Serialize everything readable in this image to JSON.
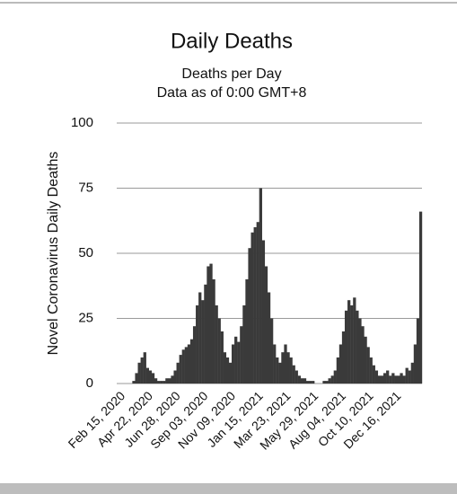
{
  "chart_data": {
    "type": "bar",
    "title": "Daily Deaths",
    "subtitle": "Deaths per Day",
    "note": "Data as of 0:00 GMT+8",
    "y_label": "Novel Coronavirus Daily Deaths",
    "color": "#3a3a3a",
    "grid": true,
    "ylim": [
      0,
      100
    ],
    "yticks": [
      0,
      25,
      50,
      75,
      100
    ],
    "categories": [
      "Feb 15, 2020",
      null,
      null,
      null,
      null,
      null,
      null,
      null,
      null,
      null,
      "Apr 22, 2020",
      null,
      null,
      null,
      null,
      null,
      null,
      null,
      null,
      null,
      "Jun 28, 2020",
      null,
      null,
      null,
      null,
      null,
      null,
      null,
      null,
      null,
      "Sep 03, 2020",
      null,
      null,
      null,
      null,
      null,
      null,
      null,
      null,
      null,
      "Nov 09, 2020",
      null,
      null,
      null,
      null,
      null,
      null,
      null,
      null,
      null,
      "Jan 15, 2021",
      null,
      null,
      null,
      null,
      null,
      null,
      null,
      null,
      null,
      "Mar 23, 2021",
      null,
      null,
      null,
      null,
      null,
      null,
      null,
      null,
      null,
      "May 29, 2021",
      null,
      null,
      null,
      null,
      null,
      null,
      null,
      null,
      null,
      "Aug 04, 2021",
      null,
      null,
      null,
      null,
      null,
      null,
      null,
      null,
      null,
      "Oct 10, 2021",
      null,
      null,
      null,
      null,
      null,
      null,
      null,
      null,
      null,
      "Dec 16, 2021",
      null,
      null,
      null,
      null,
      null,
      null,
      null,
      null,
      null
    ],
    "values": [
      0,
      0,
      0,
      0,
      0,
      1,
      4,
      8,
      10,
      12,
      6,
      5,
      4,
      2,
      1,
      1,
      1,
      2,
      2,
      3,
      5,
      8,
      11,
      13,
      14,
      15,
      17,
      22,
      30,
      35,
      32,
      38,
      45,
      46,
      40,
      30,
      25,
      20,
      12,
      10,
      8,
      15,
      18,
      16,
      22,
      30,
      40,
      52,
      58,
      60,
      62,
      75,
      55,
      45,
      35,
      25,
      15,
      10,
      8,
      12,
      15,
      12,
      10,
      7,
      5,
      3,
      2,
      2,
      1,
      1,
      1,
      0,
      0,
      0,
      1,
      1,
      2,
      3,
      5,
      10,
      15,
      20,
      28,
      32,
      30,
      33,
      28,
      25,
      22,
      18,
      14,
      10,
      7,
      5,
      3,
      3,
      4,
      5,
      3,
      4,
      3,
      3,
      4,
      3,
      6,
      5,
      8,
      15,
      25,
      66
    ]
  }
}
